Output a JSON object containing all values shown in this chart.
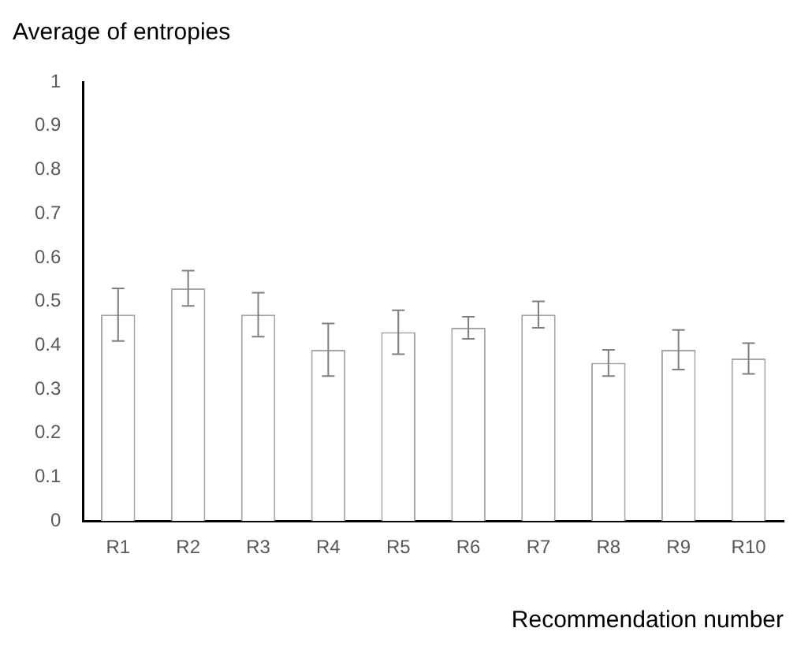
{
  "chart_data": {
    "type": "bar",
    "title": "Average of entropies",
    "xlabel": "Recommendation number",
    "categories": [
      "R1",
      "R2",
      "R3",
      "R4",
      "R5",
      "R6",
      "R7",
      "R8",
      "R9",
      "R10"
    ],
    "values": [
      0.47,
      0.53,
      0.47,
      0.39,
      0.43,
      0.44,
      0.47,
      0.36,
      0.39,
      0.37
    ],
    "errors": [
      0.06,
      0.04,
      0.05,
      0.06,
      0.05,
      0.025,
      0.03,
      0.03,
      0.045,
      0.035
    ],
    "color": "#ffffff",
    "ylim": [
      0,
      1
    ],
    "yticks": [
      0,
      0.1,
      0.2,
      0.3,
      0.4,
      0.5,
      0.6,
      0.7,
      0.8,
      0.9,
      1
    ],
    "grid": false,
    "legend": false
  }
}
